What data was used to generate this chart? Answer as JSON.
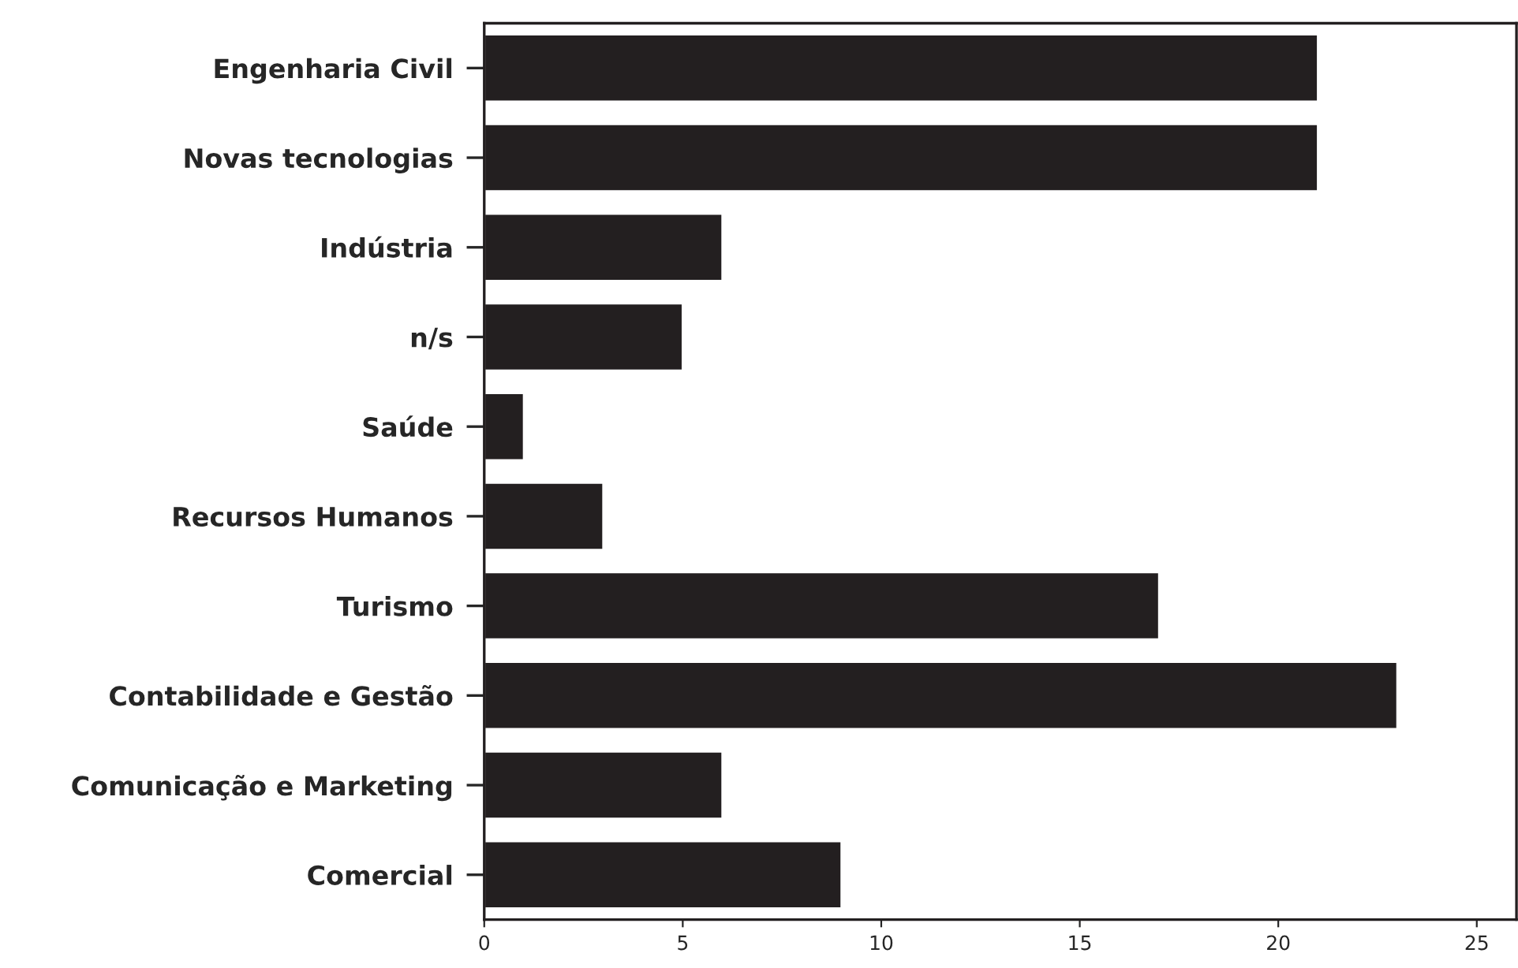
{
  "chart_data": {
    "type": "bar",
    "orientation": "horizontal",
    "categories": [
      "Engenharia Civil",
      "Novas tecnologias",
      "Indústria",
      "n/s",
      "Saúde",
      "Recursos Humanos",
      "Turismo",
      "Contabilidade e Gestão",
      "Comunicação e Marketing",
      "Comercial"
    ],
    "values": [
      21,
      21,
      6,
      5,
      1,
      3,
      17,
      23,
      6,
      9
    ],
    "color": "#231f20",
    "xlim": [
      0,
      26
    ],
    "xticks": [
      0,
      5,
      10,
      15,
      20,
      25
    ],
    "grid": false
  }
}
